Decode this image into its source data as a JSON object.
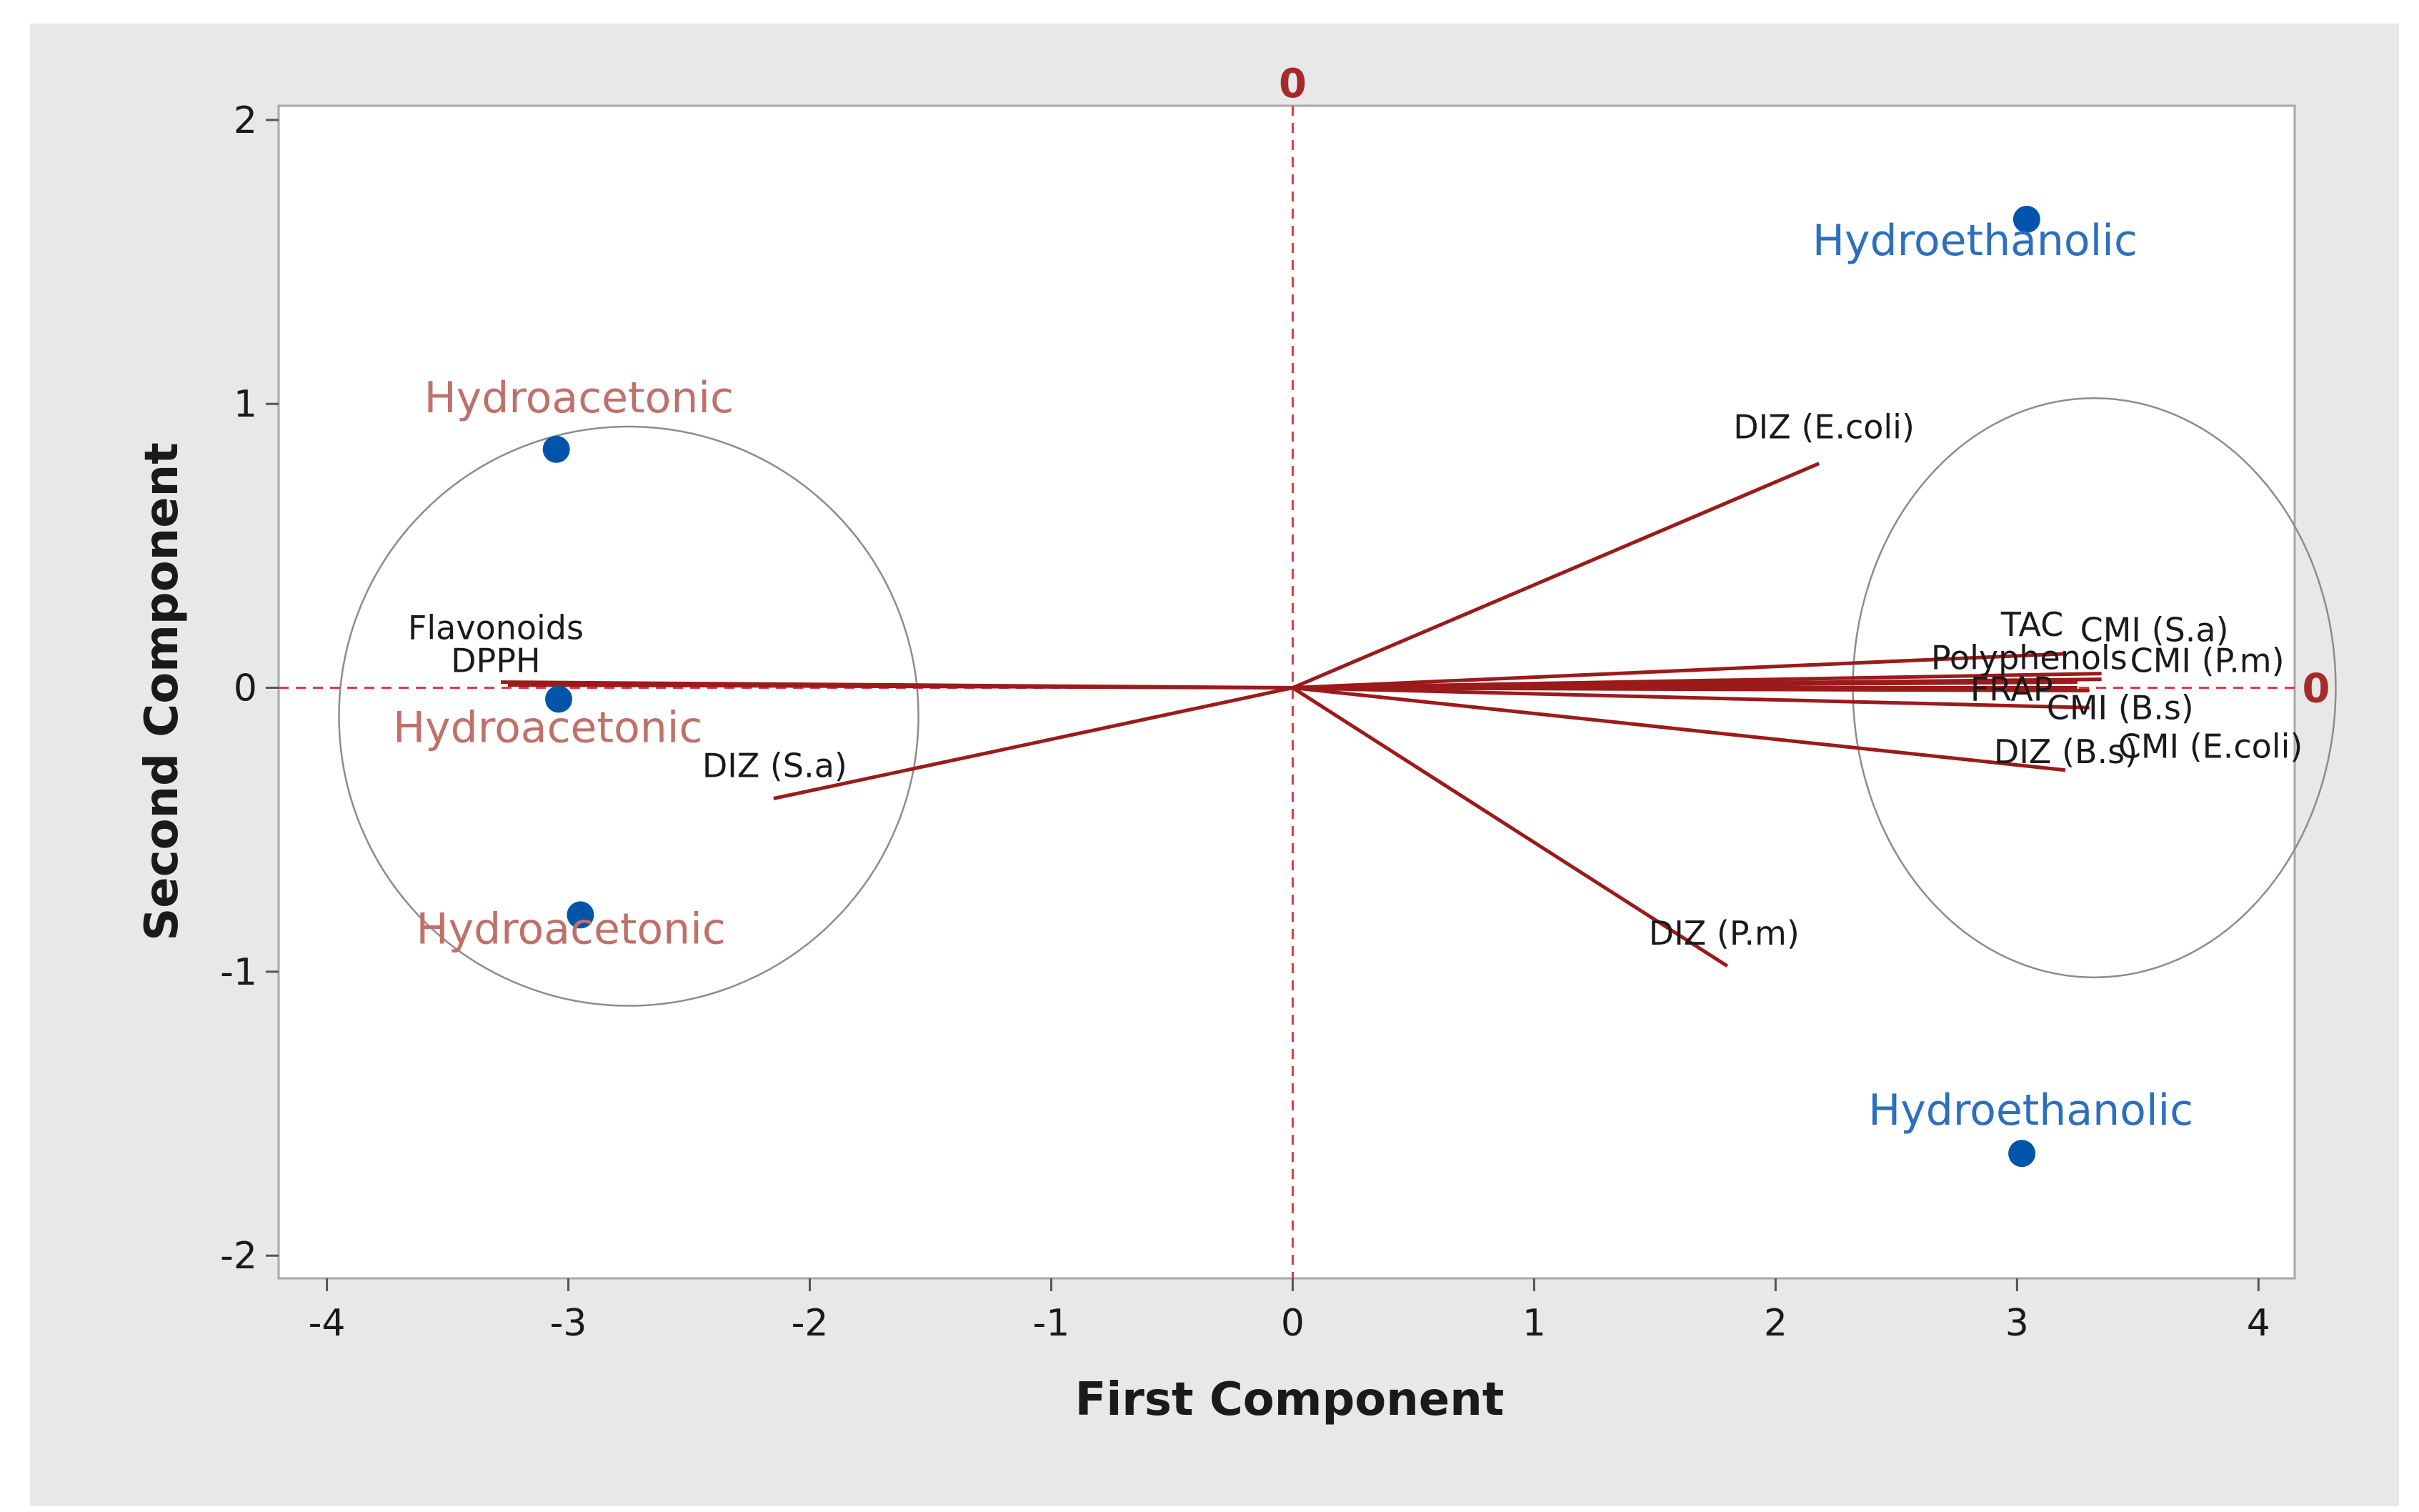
{
  "chart_data": {
    "type": "biplot",
    "title": "",
    "xlabel": "First Component",
    "ylabel": "Second Component",
    "xlim": [
      -4.2,
      4.15
    ],
    "ylim": [
      -2.08,
      2.05
    ],
    "x_ticks": [
      -4,
      -3,
      -2,
      -1,
      0,
      1,
      2,
      3,
      4
    ],
    "y_ticks": [
      -2,
      -1,
      0,
      1,
      2
    ],
    "reference_lines": {
      "x": 0,
      "y": 0,
      "x_label": "0",
      "y_label": "0",
      "color": "#e03c3c"
    },
    "loadings": [
      {
        "name": "DIZ (E.coli)",
        "x": 2.18,
        "y": 0.79
      },
      {
        "name": "TAC",
        "x": 3.2,
        "y": 0.12
      },
      {
        "name": "CMI (S.a)",
        "x": 3.35,
        "y": 0.05
      },
      {
        "name": "CMI (P.m)",
        "x": 3.35,
        "y": 0.03
      },
      {
        "name": "Polyphenols",
        "x": 3.25,
        "y": 0.02
      },
      {
        "name": "FRAP",
        "x": 3.25,
        "y": 0.0
      },
      {
        "name": "CMI (B.s)",
        "x": 3.3,
        "y": -0.01
      },
      {
        "name": "CMI (E.coli)",
        "x": 3.3,
        "y": -0.07
      },
      {
        "name": "DIZ (B.s)",
        "x": 3.2,
        "y": -0.29
      },
      {
        "name": "DIZ (P.m)",
        "x": 1.8,
        "y": -0.98
      },
      {
        "name": "DIZ (S.a)",
        "x": -2.15,
        "y": -0.39
      },
      {
        "name": "Flavonoids",
        "x": -3.28,
        "y": 0.02
      },
      {
        "name": "DPPH",
        "x": -3.25,
        "y": 0.01
      }
    ],
    "scores": [
      {
        "name": "Hydroethanolic",
        "x": 3.04,
        "y": 1.65,
        "group": "Hydroethanolic"
      },
      {
        "name": "Hydroethanolic",
        "x": 3.02,
        "y": -1.64,
        "group": "Hydroethanolic"
      },
      {
        "name": "Hydroacetonic",
        "x": -3.05,
        "y": 0.84,
        "group": "Hydroacetonic"
      },
      {
        "name": "Hydroacetonic",
        "x": -3.04,
        "y": -0.04,
        "group": "Hydroacetonic"
      },
      {
        "name": "Hydroacetonic",
        "x": -2.95,
        "y": -0.8,
        "group": "Hydroacetonic"
      }
    ],
    "ellipses": [
      {
        "name": "hydroacetonic-cluster",
        "cx": -2.75,
        "cy": -0.1,
        "rx": 1.2,
        "ry": 1.02
      },
      {
        "name": "loading-cluster",
        "cx": 3.32,
        "cy": 0.0,
        "rx": 1.0,
        "ry": 1.02
      }
    ],
    "colors": {
      "vector": "#9b1b1b",
      "point": "#0055aa",
      "hydroethanolic_label": "#2c6fbf",
      "hydroacetonic_label": "#c0706a",
      "reference": "#e03c3c",
      "ellipse": "#8c8c8c",
      "frame": "#e8e8e8"
    }
  }
}
